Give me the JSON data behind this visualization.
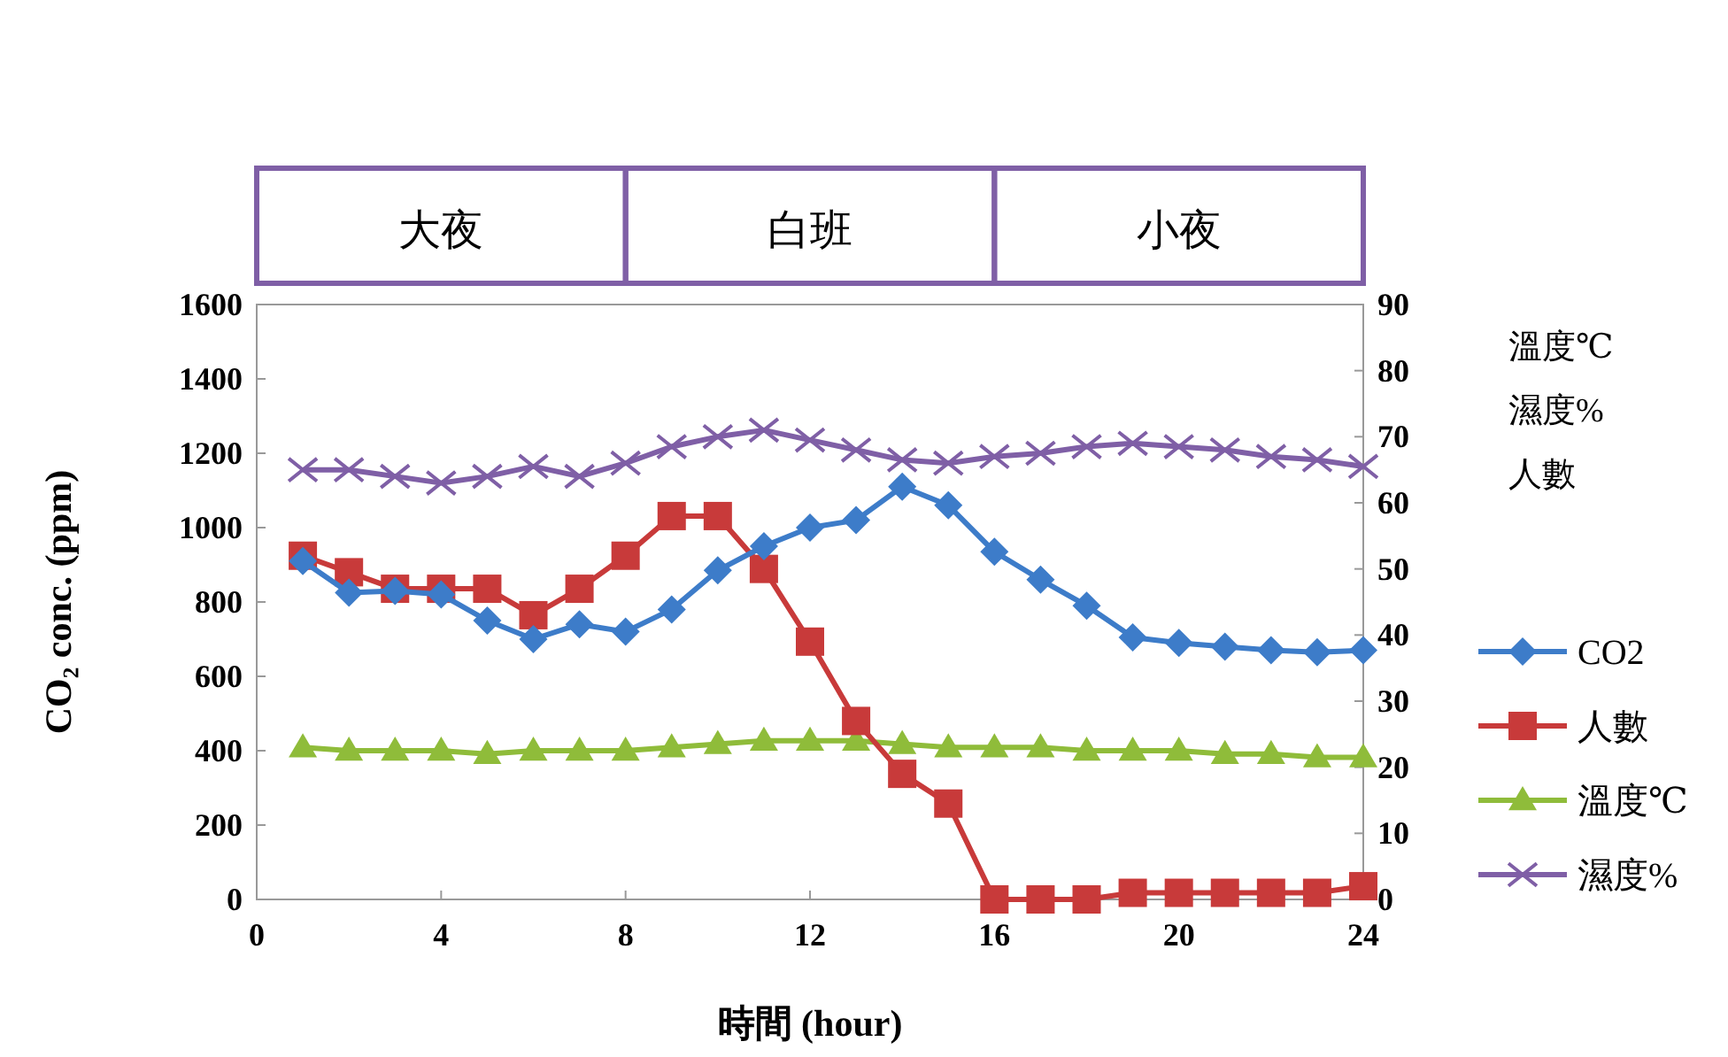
{
  "chart_data": {
    "type": "line",
    "xlabel": "時間 (hour)",
    "ylabel": "CO₂ conc. (ppm)",
    "y2label": "溫度℃\n濕度%\n人數",
    "x": [
      1,
      2,
      3,
      4,
      5,
      6,
      7,
      8,
      9,
      10,
      11,
      12,
      13,
      14,
      15,
      16,
      17,
      18,
      19,
      20,
      21,
      22,
      23,
      24
    ],
    "xlim": [
      0,
      24
    ],
    "xticks": [
      0,
      4,
      8,
      12,
      16,
      20,
      24
    ],
    "ylim": [
      0,
      1600
    ],
    "yticks": [
      0,
      200,
      400,
      600,
      800,
      1000,
      1200,
      1400,
      1600
    ],
    "y2lim": [
      0,
      90
    ],
    "y2ticks": [
      0,
      10,
      20,
      30,
      40,
      50,
      60,
      70,
      80,
      90
    ],
    "legend": "right",
    "grid": false,
    "annotations": [
      "大夜",
      "白班",
      "小夜"
    ],
    "series": [
      {
        "name": "CO2",
        "color": "#3d7cc9",
        "marker": "diamond",
        "values": [
          910,
          825,
          830,
          820,
          750,
          700,
          740,
          720,
          780,
          885,
          950,
          1000,
          1020,
          1110,
          1060,
          935,
          860,
          790,
          705,
          690,
          680,
          670,
          665,
          670
        ]
      },
      {
        "name": "人數",
        "color": "#c83a3a",
        "marker": "square",
        "axis": "y2",
        "values": [
          52,
          49.5,
          47,
          47,
          47,
          43,
          47,
          52,
          58,
          58,
          50,
          39,
          27,
          19,
          14.5,
          0,
          0,
          0,
          1,
          1,
          1,
          1,
          1,
          2
        ]
      },
      {
        "name": "溫度℃",
        "color": "#8fbc3a",
        "marker": "triangle",
        "axis": "y2",
        "values": [
          23,
          22.5,
          22.5,
          22.5,
          22,
          22.5,
          22.5,
          22.5,
          23,
          23.5,
          24,
          24,
          24,
          23.5,
          23,
          23,
          23,
          22.5,
          22.5,
          22.5,
          22,
          22,
          21.5,
          21.5
        ]
      },
      {
        "name": "濕度%",
        "color": "#7f5fa6",
        "marker": "cross",
        "axis": "y2",
        "values": [
          65,
          65,
          64,
          63,
          64,
          65.5,
          64,
          66,
          68.5,
          70,
          71,
          69.5,
          68,
          66.5,
          66,
          67,
          67.5,
          68.5,
          69,
          68.5,
          68,
          67,
          66.5,
          65.5
        ]
      }
    ]
  }
}
